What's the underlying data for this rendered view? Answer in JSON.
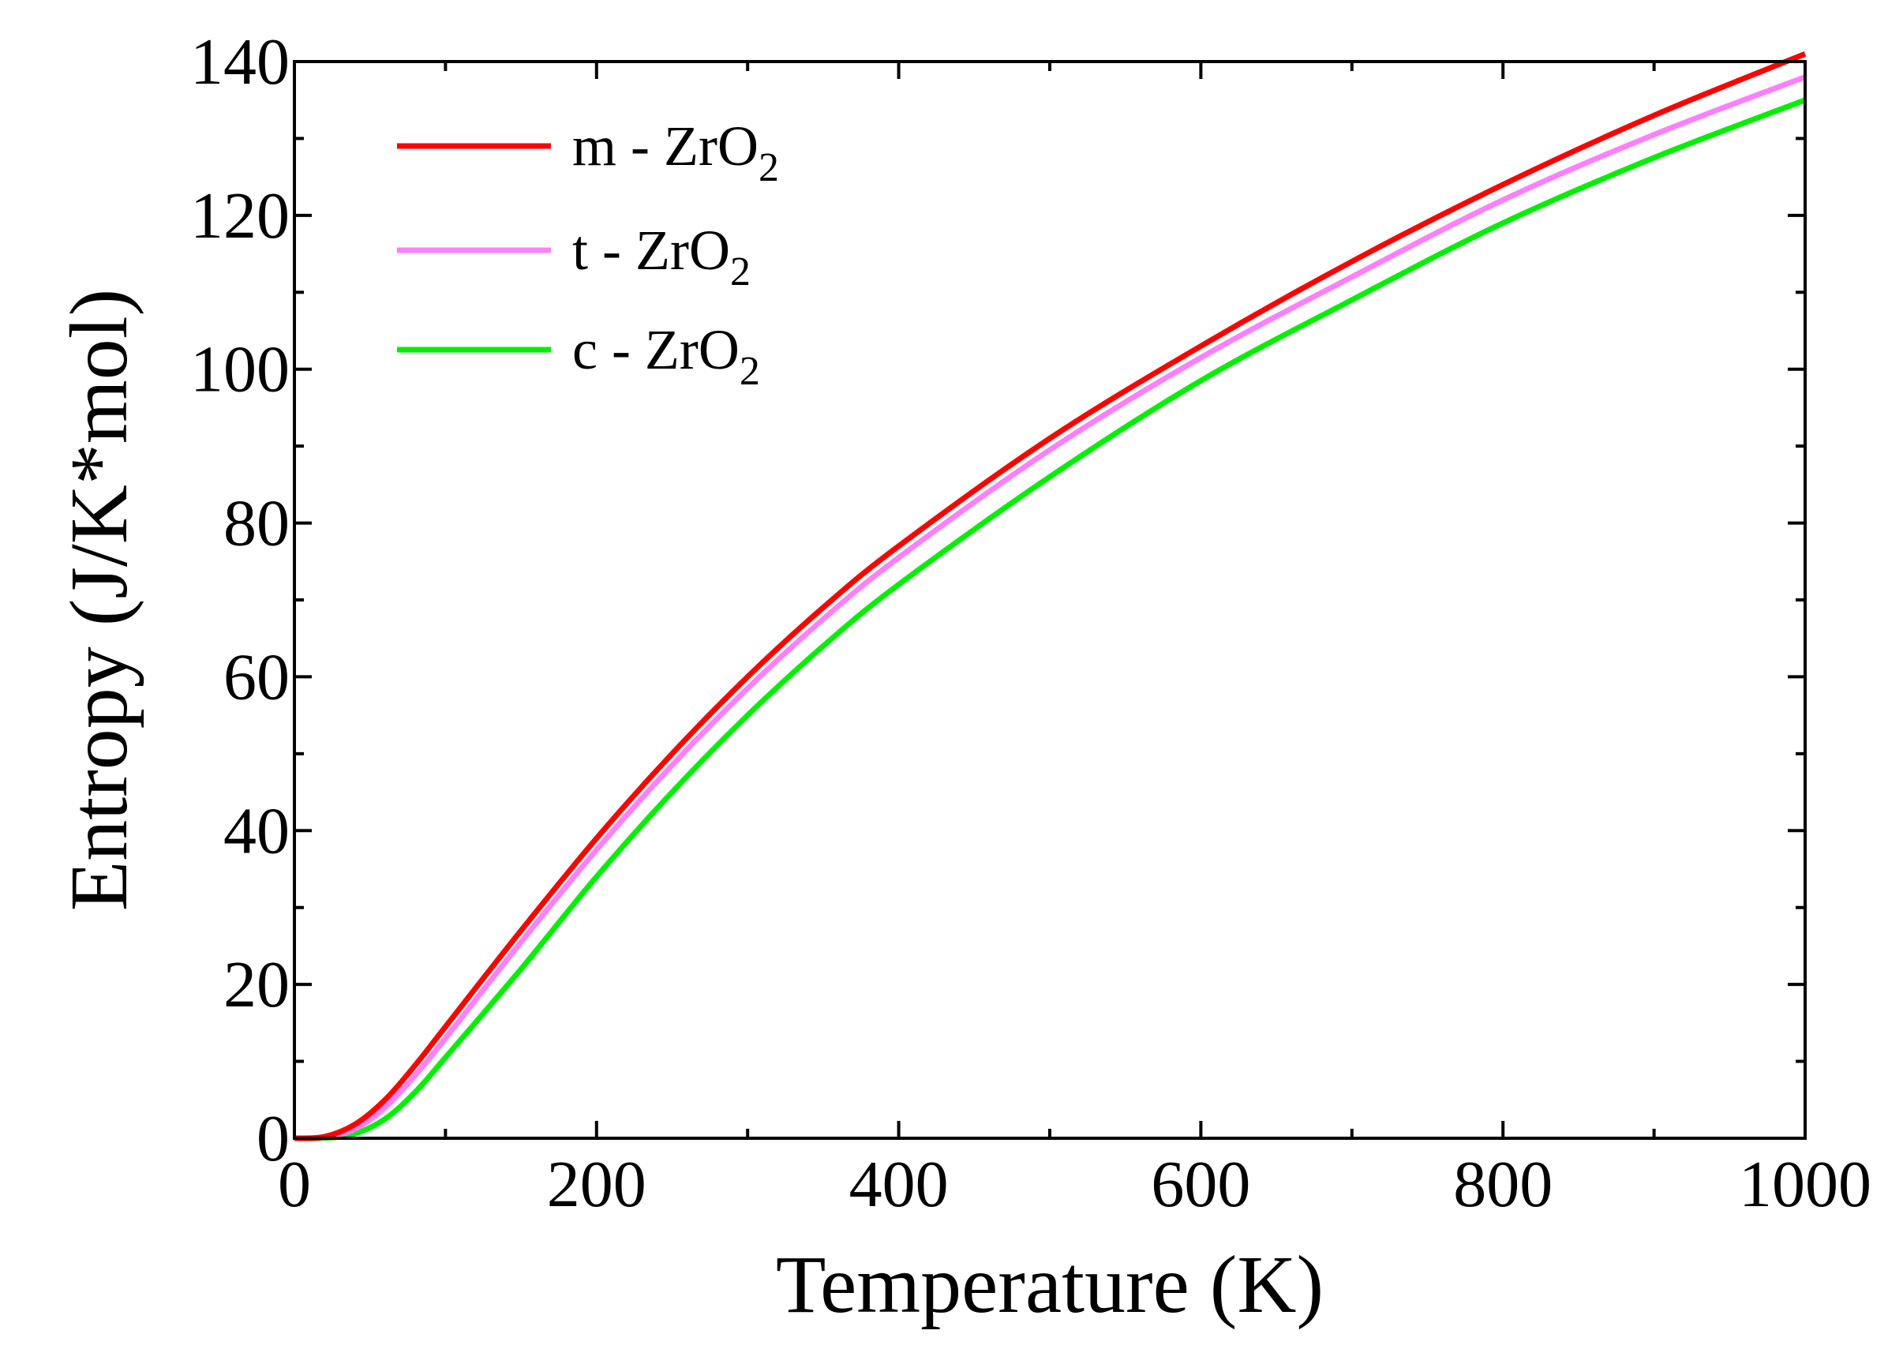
{
  "chart_data": {
    "type": "line",
    "title": "",
    "xlabel": "Temperature (K)",
    "ylabel": "Entropy (J/K*mol)",
    "xlim": [
      0,
      1000
    ],
    "ylim": [
      0,
      140
    ],
    "x_ticks": [
      "0",
      "200",
      "400",
      "600",
      "800",
      "1000"
    ],
    "y_ticks": [
      "0",
      "20",
      "40",
      "60",
      "80",
      "100",
      "120",
      "140"
    ],
    "grid": false,
    "legend_position": "top-left",
    "series": [
      {
        "name": "m - ZrO2",
        "label_main": "m  - ZrO",
        "label_sub": "2",
        "color": "#ff0000",
        "x": [
          0,
          20,
          40,
          60,
          80,
          100,
          150,
          200,
          250,
          300,
          350,
          400,
          500,
          600,
          700,
          800,
          900,
          1000
        ],
        "y": [
          0,
          0.2,
          1.8,
          5,
          9.5,
          14.5,
          27,
          39,
          50,
          60,
          69,
          77,
          91,
          103,
          114,
          124,
          133,
          141
        ]
      },
      {
        "name": "t - ZrO2",
        "label_main": "t   - ZrO",
        "label_sub": "2",
        "color": "#ff80ff",
        "x": [
          0,
          20,
          40,
          60,
          80,
          100,
          150,
          200,
          250,
          300,
          350,
          400,
          500,
          600,
          700,
          800,
          900,
          1000
        ],
        "y": [
          0,
          0.1,
          1.2,
          4,
          8.2,
          13,
          25.5,
          37.5,
          48.5,
          58.5,
          67.5,
          75.5,
          89.5,
          101.5,
          112,
          122,
          130.5,
          138
        ]
      },
      {
        "name": "c - ZrO2",
        "label_main": "c  - ZrO",
        "label_sub": "2",
        "color": "#00ee00",
        "x": [
          0,
          20,
          40,
          60,
          80,
          100,
          150,
          200,
          250,
          300,
          350,
          400,
          500,
          600,
          700,
          800,
          900,
          1000
        ],
        "y": [
          0,
          0,
          0.6,
          2.5,
          6,
          10.5,
          22,
          34,
          45,
          55,
          64,
          72,
          86,
          98.5,
          109,
          119,
          127.5,
          135
        ]
      }
    ]
  }
}
